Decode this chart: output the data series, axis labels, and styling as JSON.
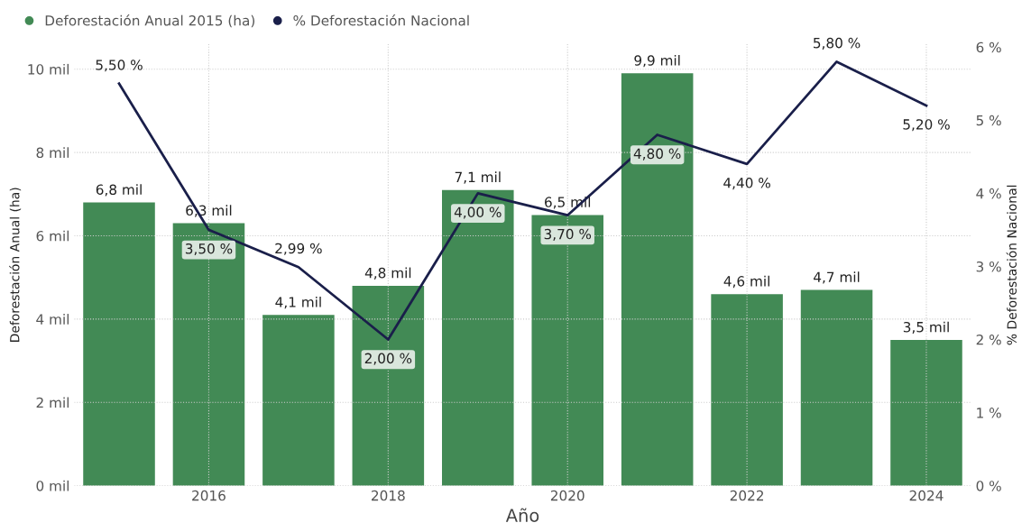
{
  "chart_data": {
    "type": "bar",
    "xlabel": "Año",
    "ylabel": "Deforestación Anual (ha)",
    "y2label": "% Deforestación Nacional",
    "x": [
      2015,
      2016,
      2017,
      2018,
      2019,
      2020,
      2021,
      2022,
      2023,
      2024
    ],
    "xlim": [
      2014.5,
      2024.5
    ],
    "xticks": [
      2016,
      2018,
      2020,
      2022,
      2024
    ],
    "ylim": [
      0,
      10.6
    ],
    "yticks": [
      {
        "value": 0,
        "label": "0 mil"
      },
      {
        "value": 2,
        "label": "2 mil"
      },
      {
        "value": 4,
        "label": "4 mil"
      },
      {
        "value": 6,
        "label": "6 mil"
      },
      {
        "value": 8,
        "label": "8 mil"
      },
      {
        "value": 10,
        "label": "10 mil"
      }
    ],
    "y2lim": [
      0,
      6.04
    ],
    "y2ticks": [
      {
        "value": 0,
        "label": "0 %"
      },
      {
        "value": 1,
        "label": "1 %"
      },
      {
        "value": 2,
        "label": "2 %"
      },
      {
        "value": 3,
        "label": "3 %"
      },
      {
        "value": 4,
        "label": "4 %"
      },
      {
        "value": 5,
        "label": "5 %"
      },
      {
        "value": 6,
        "label": "6 %"
      }
    ],
    "grid": true,
    "legend": "top left",
    "series": [
      {
        "name": "Deforestación Anual 2015 (ha)",
        "color": "#428a55",
        "values": [
          6.8,
          6.3,
          4.1,
          4.8,
          7.1,
          6.5,
          9.9,
          4.6,
          4.7,
          3.5
        ],
        "value_labels": [
          "6,8 mil",
          "6,3 mil",
          "4,1 mil",
          "4,8 mil",
          "7,1 mil",
          "6,5 mil",
          "9,9 mil",
          "4,6 mil",
          "4,7 mil",
          "3,5 mil"
        ]
      },
      {
        "name": "% Deforestación Nacional",
        "type": "line",
        "axis": "y2",
        "color": "#1a1f4a",
        "marker": "none",
        "values": [
          5.5,
          3.5,
          2.99,
          2.0,
          4.0,
          3.7,
          4.8,
          4.4,
          5.8,
          5.2
        ],
        "value_labels": [
          "5,50 %",
          "3,50 %",
          "2,99 %",
          "2,00 %",
          "4,00 %",
          "3,70 %",
          "4,80 %",
          "4,40 %",
          "5,80 %",
          "5,20 %"
        ]
      }
    ]
  }
}
